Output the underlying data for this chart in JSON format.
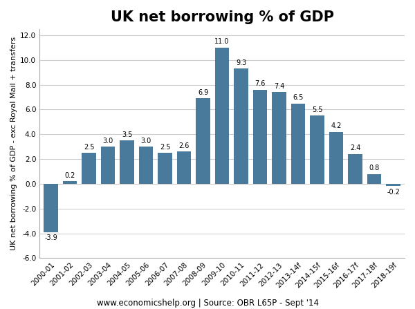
{
  "title": "UK net borrowing % of GDP",
  "ylabel": "UK net borrowing % of GDP - exc Royal Mail + transfers",
  "footer": "www.economicshelp.org | Source: OBR L65P - Sept '14",
  "categories": [
    "2000-01",
    "2001-02",
    "2002-03",
    "2003-04",
    "2004-05",
    "2005-06",
    "2006-07",
    "2007-08",
    "2008-09",
    "2009-10",
    "2010-11",
    "2011-12",
    "2012-13",
    "2013-14f",
    "2014-15f",
    "2015-16f",
    "2016-17f",
    "2017-18f",
    "2018-19f"
  ],
  "values": [
    -3.9,
    0.2,
    2.5,
    3.0,
    3.5,
    3.0,
    2.5,
    2.6,
    6.9,
    11.0,
    9.3,
    7.6,
    7.4,
    6.5,
    5.5,
    4.2,
    2.4,
    0.8,
    -0.2
  ],
  "bar_color": "#4a7a9b",
  "ylim": [
    -6.0,
    12.5
  ],
  "yticks": [
    -6.0,
    -4.0,
    -2.0,
    0.0,
    2.0,
    4.0,
    6.0,
    8.0,
    10.0,
    12.0
  ],
  "title_fontsize": 15,
  "label_fontsize": 7.5,
  "ylabel_fontsize": 8,
  "footer_fontsize": 8.5,
  "bar_label_fontsize": 7
}
